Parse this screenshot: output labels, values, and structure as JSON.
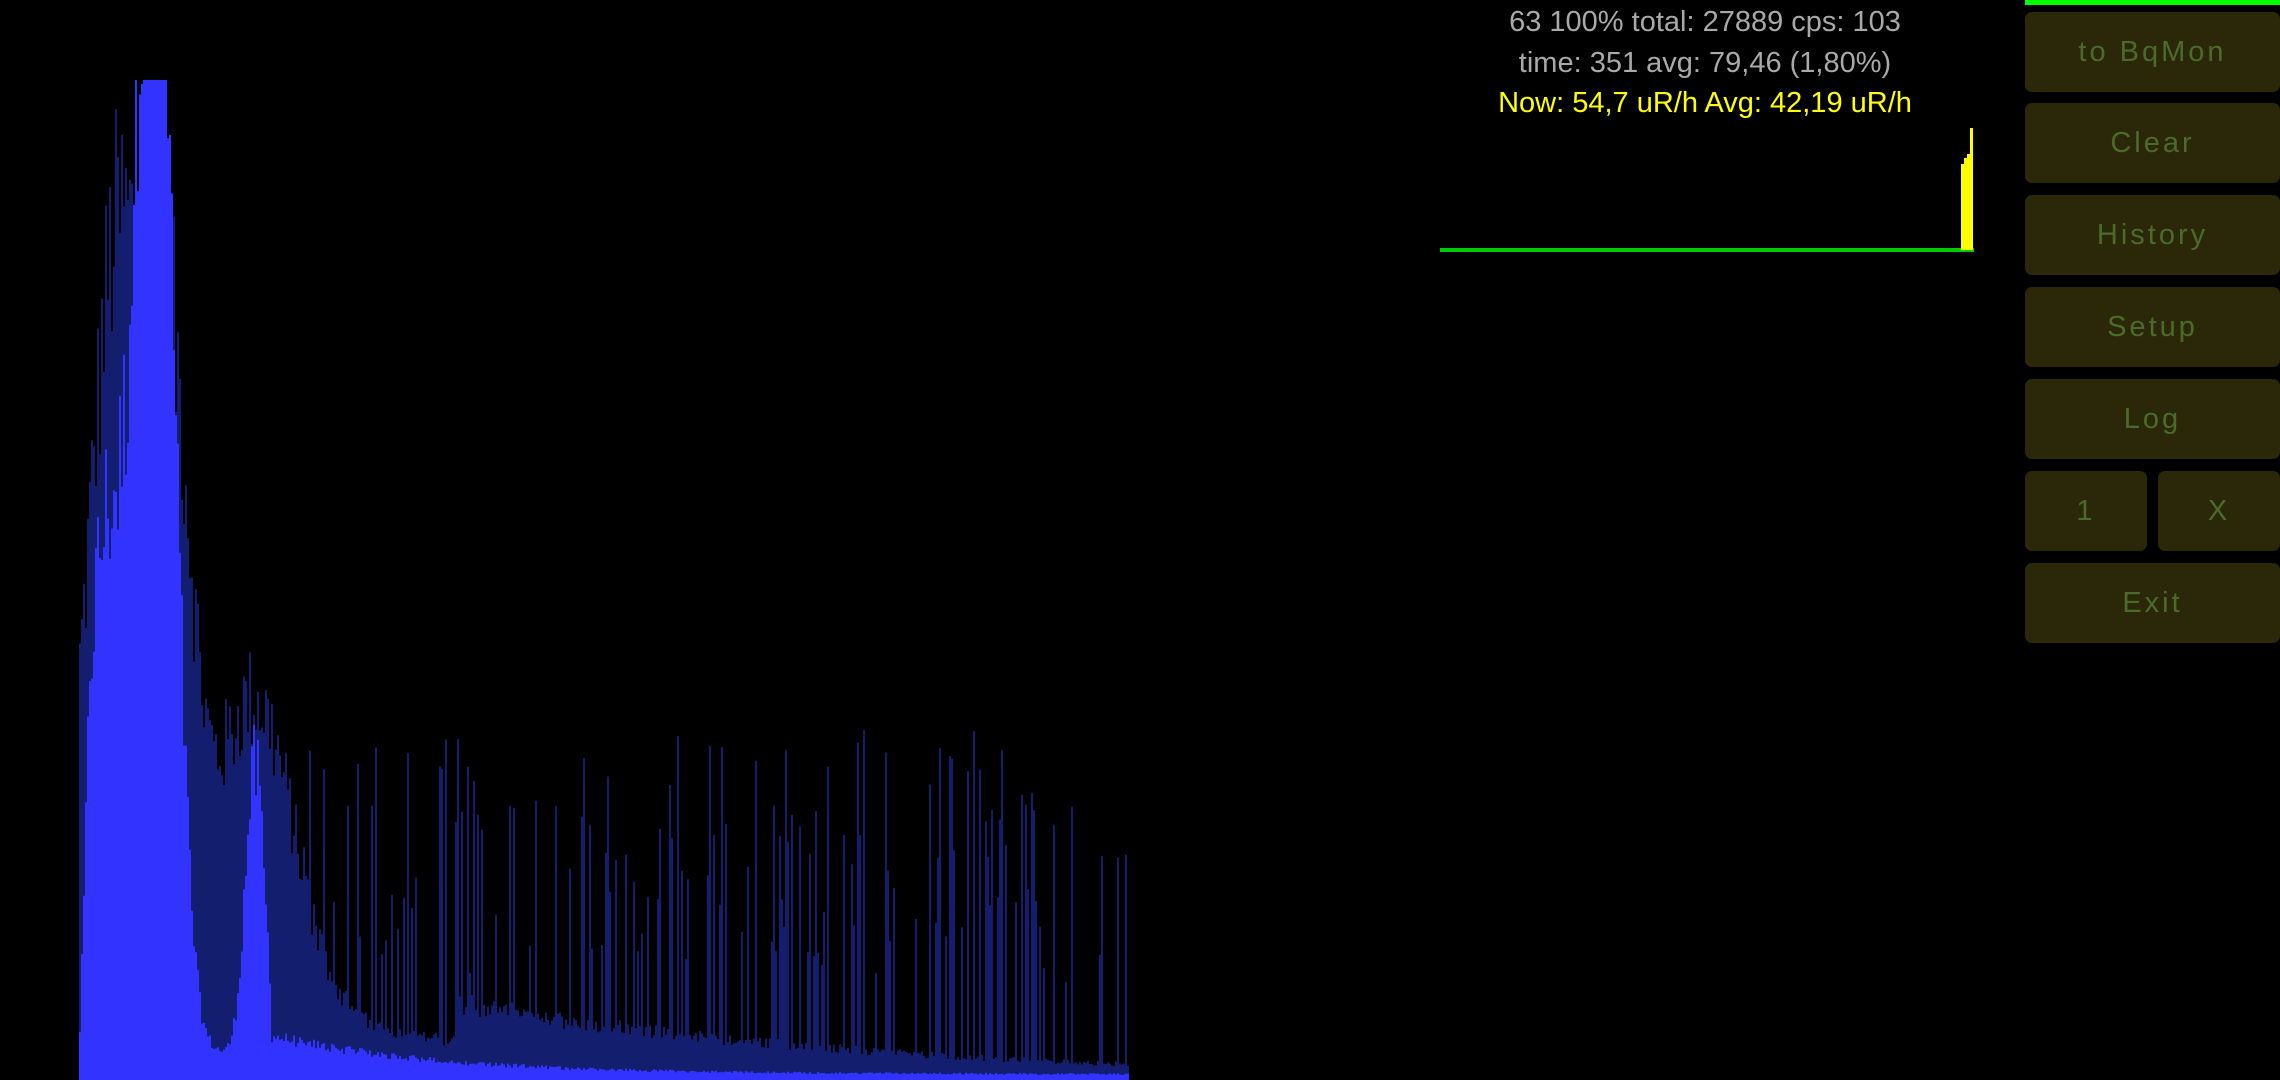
{
  "stats": {
    "line1": "63 100% total: 27889 cps: 103",
    "line2": "time: 351 avg: 79,46 (1,80%)",
    "line3": "Now: 54,7 uR/h Avg: 42,19 uR/h"
  },
  "progress": 1.0,
  "colors": {
    "background": "#000000",
    "spectrum_main": "#3333ff",
    "spectrum_background": "#141e6e",
    "dose_bar": "#ffff00",
    "history_baseline": "#00cc00",
    "button_bg": "#2a2808",
    "button_text": "#4c6a2a",
    "stats_text": "#a9a9a9",
    "dose_text": "#ffff00"
  },
  "buttons": {
    "to_bqmon": "to BqMon",
    "clear": "Clear",
    "history": "History",
    "setup": "Setup",
    "log": "Log",
    "one": "1",
    "x": "X",
    "exit": "Exit"
  }
}
